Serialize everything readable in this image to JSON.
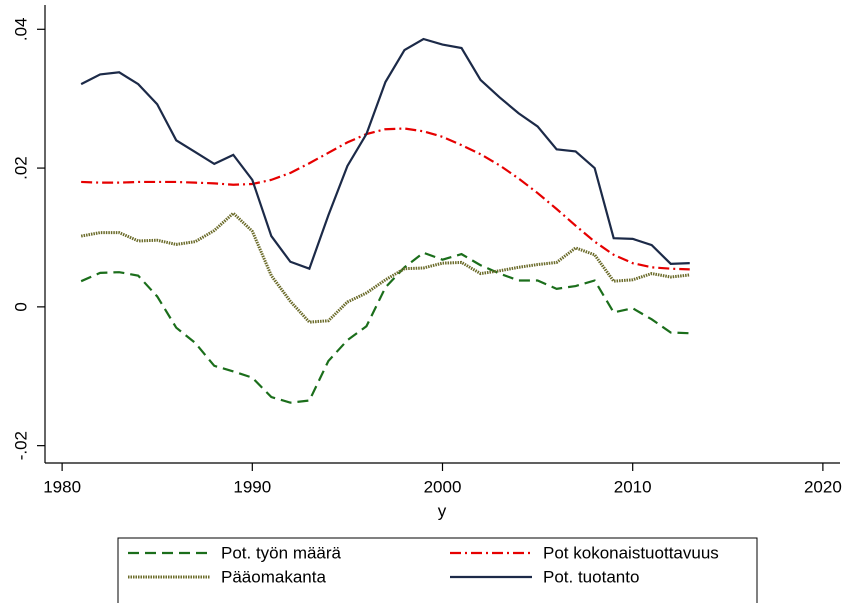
{
  "chart_data": {
    "type": "line",
    "xlabel": "y",
    "x": [
      1981,
      1982,
      1983,
      1984,
      1985,
      1986,
      1987,
      1988,
      1989,
      1990,
      1991,
      1992,
      1993,
      1994,
      1995,
      1996,
      1997,
      1998,
      1999,
      2000,
      2001,
      2002,
      2003,
      2004,
      2005,
      2006,
      2007,
      2008,
      2009,
      2010,
      2011,
      2012,
      2013
    ],
    "xlim": [
      1979.1,
      2020.9
    ],
    "xticks": [
      1980,
      1990,
      2000,
      2010,
      2020
    ],
    "ylim": [
      -0.0225,
      0.0435
    ],
    "yticks": [
      {
        "value": -0.02,
        "label": "-.02"
      },
      0,
      {
        "value": 0.02,
        "label": ".02"
      },
      {
        "value": 0.04,
        "label": ".04"
      }
    ],
    "grid": false,
    "legend": "bottom",
    "series": [
      {
        "name": "Pot. työn määrä",
        "color": "#1b6e1b",
        "line_style": "dashed",
        "values": [
          0.0037,
          0.0049,
          0.005,
          0.0045,
          0.0015,
          -0.003,
          -0.0052,
          -0.0085,
          -0.0093,
          -0.0102,
          -0.013,
          -0.0138,
          -0.0135,
          -0.0078,
          -0.0048,
          -0.0028,
          0.0028,
          0.0057,
          0.0078,
          0.0068,
          0.0076,
          0.006,
          0.0048,
          0.0038,
          0.0038,
          0.0026,
          0.003,
          0.0038,
          -0.0008,
          -0.0002,
          -0.0018,
          -0.0037,
          -0.0038
        ]
      },
      {
        "name": "Pot kokonaistuottavuus",
        "color": "#e60000",
        "line_style": "dash-dot",
        "values": [
          0.018,
          0.0179,
          0.0179,
          0.018,
          0.018,
          0.018,
          0.0179,
          0.0178,
          0.0176,
          0.0177,
          0.0183,
          0.0193,
          0.0207,
          0.0222,
          0.0237,
          0.0249,
          0.0256,
          0.0257,
          0.0253,
          0.0245,
          0.0233,
          0.022,
          0.0204,
          0.0185,
          0.0164,
          0.0141,
          0.0117,
          0.0094,
          0.0075,
          0.0063,
          0.0057,
          0.0055,
          0.0054
        ]
      },
      {
        "name": "Pääomakanta",
        "color": "#6b6b2a",
        "line_style": "dotted",
        "values": [
          0.0102,
          0.0107,
          0.0107,
          0.0095,
          0.0096,
          0.009,
          0.0094,
          0.011,
          0.0135,
          0.0109,
          0.0045,
          0.0008,
          -0.0022,
          -0.002,
          0.0007,
          0.002,
          0.0039,
          0.0055,
          0.0056,
          0.0063,
          0.0064,
          0.0048,
          0.0052,
          0.0057,
          0.0061,
          0.0064,
          0.0085,
          0.0075,
          0.0037,
          0.0039,
          0.0048,
          0.0043,
          0.0046
        ]
      },
      {
        "name": "Pot. tuotanto",
        "color": "#1c2a48",
        "line_style": "solid",
        "values": [
          0.0321,
          0.0335,
          0.0338,
          0.0321,
          0.0292,
          0.024,
          0.0223,
          0.0206,
          0.0219,
          0.0183,
          0.0102,
          0.0065,
          0.0055,
          0.0132,
          0.0203,
          0.0249,
          0.0324,
          0.037,
          0.0386,
          0.0378,
          0.0373,
          0.0327,
          0.0302,
          0.0279,
          0.026,
          0.0227,
          0.0224,
          0.02,
          0.0099,
          0.0098,
          0.0089,
          0.0062,
          0.0063
        ]
      }
    ]
  }
}
